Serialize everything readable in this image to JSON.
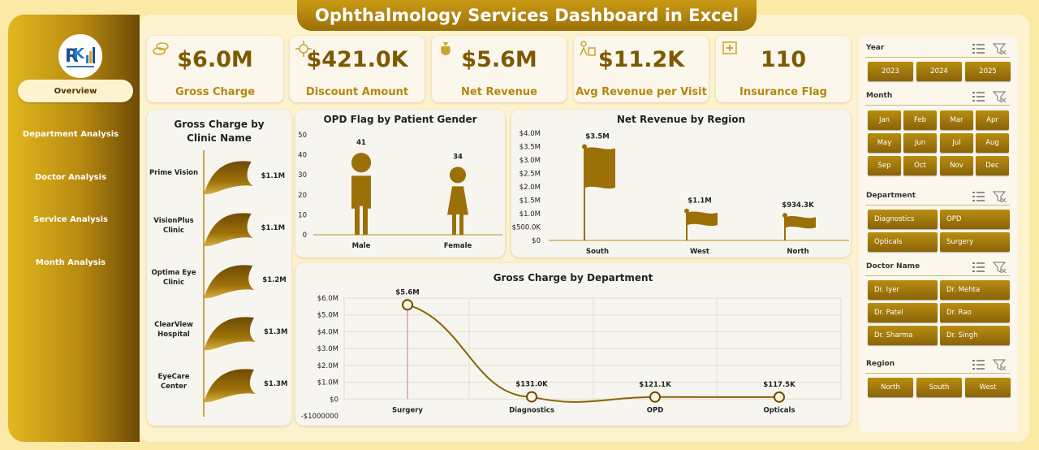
{
  "title": "Ophthalmology Services Dashboard in Excel",
  "nav": [
    {
      "label": "Overview",
      "active": true
    },
    {
      "label": "Department Analysis"
    },
    {
      "label": "Doctor Analysis"
    },
    {
      "label": "Service Analysis"
    },
    {
      "label": "Month Analysis"
    }
  ],
  "kpis": [
    {
      "value": "$6.0M",
      "label": "Gross Charge",
      "icon": "coins-icon"
    },
    {
      "value": "$421.0K",
      "label": "Discount Amount",
      "icon": "discount-icon"
    },
    {
      "value": "$5.6M",
      "label": "Net Revenue",
      "icon": "money-bag-icon"
    },
    {
      "value": "$11.2K",
      "label": "Avg Revenue per Visit",
      "icon": "visit-icon"
    },
    {
      "value": "110",
      "label": "Insurance Flag",
      "icon": "insurance-icon"
    }
  ],
  "colors": {
    "gold": "#9c7008",
    "dark_gold": "#7d5a00",
    "panel": "#fdf3cf"
  },
  "clinic_chart": {
    "title": "Gross Charge by Clinic Name",
    "items": [
      {
        "name": "Prime Vision",
        "label": "$1.1M",
        "value": 1.1
      },
      {
        "name": "VisionPlus Clinic",
        "label": "$1.1M",
        "value": 1.1
      },
      {
        "name": "Optima Eye Clinic",
        "label": "$1.2M",
        "value": 1.2
      },
      {
        "name": "ClearView Hospital",
        "label": "$1.3M",
        "value": 1.3
      },
      {
        "name": "EyeCare Center",
        "label": "$1.3M",
        "value": 1.3
      }
    ]
  },
  "gender_chart": {
    "title": "OPD Flag by Patient Gender",
    "yticks": [
      "50",
      "40",
      "30",
      "20",
      "10",
      "0"
    ],
    "items": [
      {
        "name": "Male",
        "value": 41
      },
      {
        "name": "Female",
        "value": 34
      }
    ]
  },
  "region_chart": {
    "title": "Net Revenue by Region",
    "yticks": [
      "$4.0M",
      "$3.5M",
      "$3.0M",
      "$2.5M",
      "$2.0M",
      "$1.5M",
      "$1.0M",
      "$500.0K",
      "$0"
    ],
    "items": [
      {
        "name": "South",
        "label": "$3.5M",
        "value": 3.5
      },
      {
        "name": "West",
        "label": "$1.1M",
        "value": 1.1
      },
      {
        "name": "North",
        "label": "$934.3K",
        "value": 0.9343
      }
    ]
  },
  "dept_chart": {
    "title": "Gross Charge by Department",
    "yticks": [
      "$6.0M",
      "$5.0M",
      "$4.0M",
      "$3.0M",
      "$2.0M",
      "$1.0M",
      "$0",
      "-$1000000"
    ],
    "items": [
      {
        "name": "Surgery",
        "label": "$5.6M",
        "value": 5.6
      },
      {
        "name": "Diagnostics",
        "label": "$131.0K",
        "value": 0.131
      },
      {
        "name": "OPD",
        "label": "$121.1K",
        "value": 0.1211
      },
      {
        "name": "Opticals",
        "label": "$117.5K",
        "value": 0.1175
      }
    ]
  },
  "chart_data": [
    {
      "type": "bar",
      "title": "Gross Charge by Clinic Name",
      "categories": [
        "Prime Vision",
        "VisionPlus Clinic",
        "Optima Eye Clinic",
        "ClearView Hospital",
        "EyeCare Center"
      ],
      "values": [
        1.1,
        1.1,
        1.2,
        1.3,
        1.3
      ],
      "unit": "$M"
    },
    {
      "type": "bar",
      "title": "OPD Flag by Patient Gender",
      "categories": [
        "Male",
        "Female"
      ],
      "values": [
        41,
        34
      ],
      "ylim": [
        0,
        50
      ]
    },
    {
      "type": "bar",
      "title": "Net Revenue by Region",
      "categories": [
        "South",
        "West",
        "North"
      ],
      "values": [
        3.5,
        1.1,
        0.9343
      ],
      "unit": "$M",
      "ylim": [
        0,
        4.0
      ]
    },
    {
      "type": "line",
      "title": "Gross Charge by Department",
      "categories": [
        "Surgery",
        "Diagnostics",
        "OPD",
        "Opticals"
      ],
      "values": [
        5.6,
        0.131,
        0.1211,
        0.1175
      ],
      "unit": "$M",
      "ylim": [
        -1,
        6
      ]
    }
  ],
  "slicers": {
    "year": {
      "title": "Year",
      "options": [
        "2023",
        "2024",
        "2025"
      ]
    },
    "month": {
      "title": "Month",
      "options": [
        "Jan",
        "Feb",
        "Mar",
        "Apr",
        "May",
        "Jun",
        "Jul",
        "Aug",
        "Sep",
        "Oct",
        "Nov",
        "Dec"
      ]
    },
    "department": {
      "title": "Department",
      "options": [
        "Diagnostics",
        "OPD",
        "Opticals",
        "Surgery"
      ]
    },
    "doctor": {
      "title": "Doctor Name",
      "options": [
        "Dr. Iyer",
        "Dr. Mehta",
        "Dr. Patel",
        "Dr. Rao",
        "Dr. Sharma",
        "Dr. Singh"
      ]
    },
    "region": {
      "title": "Region",
      "options": [
        "North",
        "South",
        "West"
      ]
    }
  }
}
